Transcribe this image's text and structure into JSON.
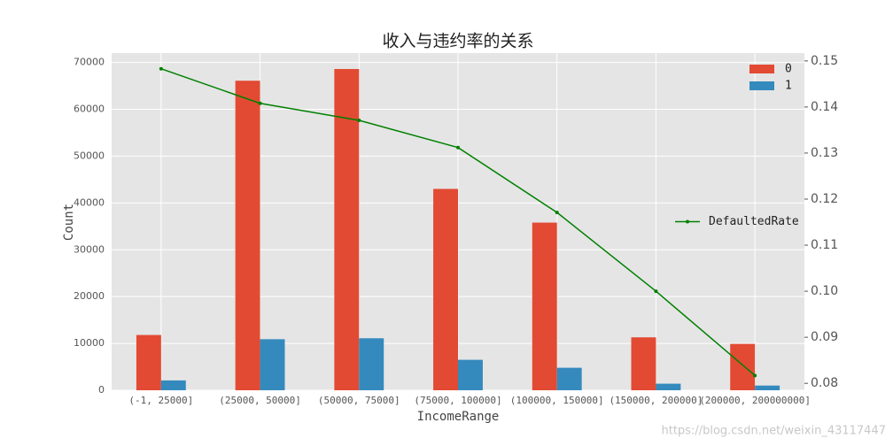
{
  "chart_data": {
    "type": "bar_line",
    "title": "收入与违约率的关系",
    "xlabel": "IncomeRange",
    "ylabel": "Count",
    "categories": [
      "(-1, 25000]",
      "(25000, 50000]",
      "(50000, 75000]",
      "(75000, 100000]",
      "(100000, 150000]",
      "(150000, 200000]",
      "(200000, 200000000]"
    ],
    "series": [
      {
        "name": "0",
        "color": "#E24A33",
        "values": [
          11800,
          66100,
          68600,
          43000,
          35800,
          11300,
          9900
        ]
      },
      {
        "name": "1",
        "color": "#348ABD",
        "values": [
          2100,
          10900,
          11100,
          6500,
          4800,
          1400,
          1000
        ]
      },
      {
        "name": "DefaultedRate",
        "color": "#008000",
        "axis": "y2",
        "values": [
          0.1483,
          0.1408,
          0.1371,
          0.1312,
          0.1171,
          0.1,
          0.0817
        ]
      }
    ],
    "ylim": [
      0,
      72000
    ],
    "yticks": [
      0,
      10000,
      20000,
      30000,
      40000,
      50000,
      60000,
      70000
    ],
    "y2lim": [
      0.0785,
      0.1517
    ],
    "y2ticks": [
      0.08,
      0.09,
      {
        "value": 0.1,
        "label": "0.10"
      },
      0.11,
      0.12,
      0.13,
      0.14,
      0.15
    ],
    "grid": true,
    "legend": "upper right",
    "line_legend": "center right",
    "watermark": "https://blog.csdn.net/weixin_43117447"
  }
}
